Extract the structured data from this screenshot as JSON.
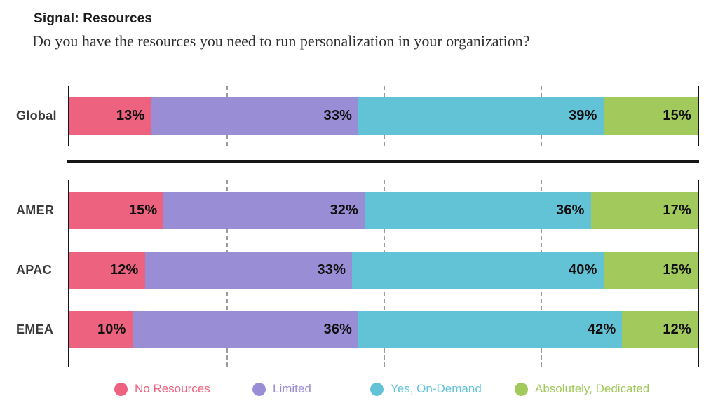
{
  "header": {
    "title": "Signal: Resources",
    "subtitle": "Do you have the resources you need to run personalization in your organization?"
  },
  "chart_data": {
    "type": "bar",
    "stacked": true,
    "orientation": "horizontal",
    "unit": "%",
    "xlim": [
      0,
      100
    ],
    "gridlines_pct": [
      25,
      50,
      75
    ],
    "axis_color": "#161616",
    "gridline_color": "#9b9b9b",
    "series_names": [
      "No Resources",
      "Limited",
      "Yes, On-Demand",
      "Absolutely, Dedicated"
    ],
    "series_colors": [
      "#EC627F",
      "#998ED6",
      "#62C3D6",
      "#A1C95B"
    ],
    "groups": [
      {
        "rows": [
          {
            "label": "Global",
            "values": [
              13,
              33,
              39,
              15
            ]
          }
        ]
      },
      {
        "rows": [
          {
            "label": "AMER",
            "values": [
              15,
              32,
              36,
              17
            ]
          },
          {
            "label": "APAC",
            "values": [
              12,
              33,
              40,
              15
            ]
          },
          {
            "label": "EMEA",
            "values": [
              10,
              36,
              42,
              12
            ]
          }
        ]
      }
    ],
    "legend": [
      {
        "label": "No Resources",
        "color": "#EC627F"
      },
      {
        "label": "Limited",
        "color": "#998ED6"
      },
      {
        "label": "Yes, On-Demand",
        "color": "#62C3D6"
      },
      {
        "label": "Absolutely, Dedicated",
        "color": "#A1C95B"
      }
    ]
  }
}
